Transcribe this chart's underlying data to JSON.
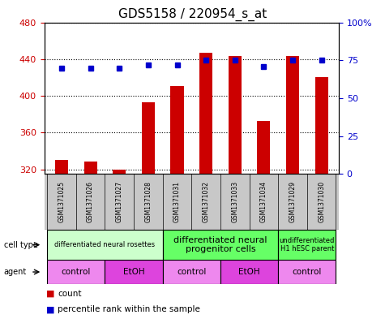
{
  "title": "GDS5158 / 220954_s_at",
  "samples": [
    "GSM1371025",
    "GSM1371026",
    "GSM1371027",
    "GSM1371028",
    "GSM1371031",
    "GSM1371032",
    "GSM1371033",
    "GSM1371034",
    "GSM1371029",
    "GSM1371030"
  ],
  "counts": [
    330,
    328,
    320,
    393,
    411,
    447,
    443,
    373,
    443,
    420
  ],
  "percentiles": [
    70,
    70,
    70,
    72,
    72,
    75,
    75,
    71,
    75,
    75
  ],
  "ylim_left": [
    315,
    480
  ],
  "ylim_right": [
    0,
    100
  ],
  "yticks_left": [
    320,
    360,
    400,
    440,
    480
  ],
  "yticks_right": [
    0,
    25,
    50,
    75,
    100
  ],
  "bar_color": "#cc0000",
  "dot_color": "#0000cc",
  "bar_base": 315,
  "cell_type_groups": [
    {
      "label": "differentiated neural rosettes",
      "start": 0,
      "end": 4,
      "color": "#ccffcc",
      "fontsize": 6
    },
    {
      "label": "differentiated neural\nprogenitor cells",
      "start": 4,
      "end": 8,
      "color": "#66ff66",
      "fontsize": 8
    },
    {
      "label": "undifferentiated\nH1 hESC parent",
      "start": 8,
      "end": 10,
      "color": "#66ff66",
      "fontsize": 6
    }
  ],
  "agent_groups": [
    {
      "label": "control",
      "start": 0,
      "end": 2,
      "color": "#ee88ee"
    },
    {
      "label": "EtOH",
      "start": 2,
      "end": 4,
      "color": "#dd44dd"
    },
    {
      "label": "control",
      "start": 4,
      "end": 6,
      "color": "#ee88ee"
    },
    {
      "label": "EtOH",
      "start": 6,
      "end": 8,
      "color": "#dd44dd"
    },
    {
      "label": "control",
      "start": 8,
      "end": 10,
      "color": "#ee88ee"
    }
  ],
  "sample_bg_color": "#c8c8c8",
  "bg_color": "#ffffff",
  "tick_label_color_left": "#cc0000",
  "tick_label_color_right": "#0000cc",
  "title_fontsize": 11
}
